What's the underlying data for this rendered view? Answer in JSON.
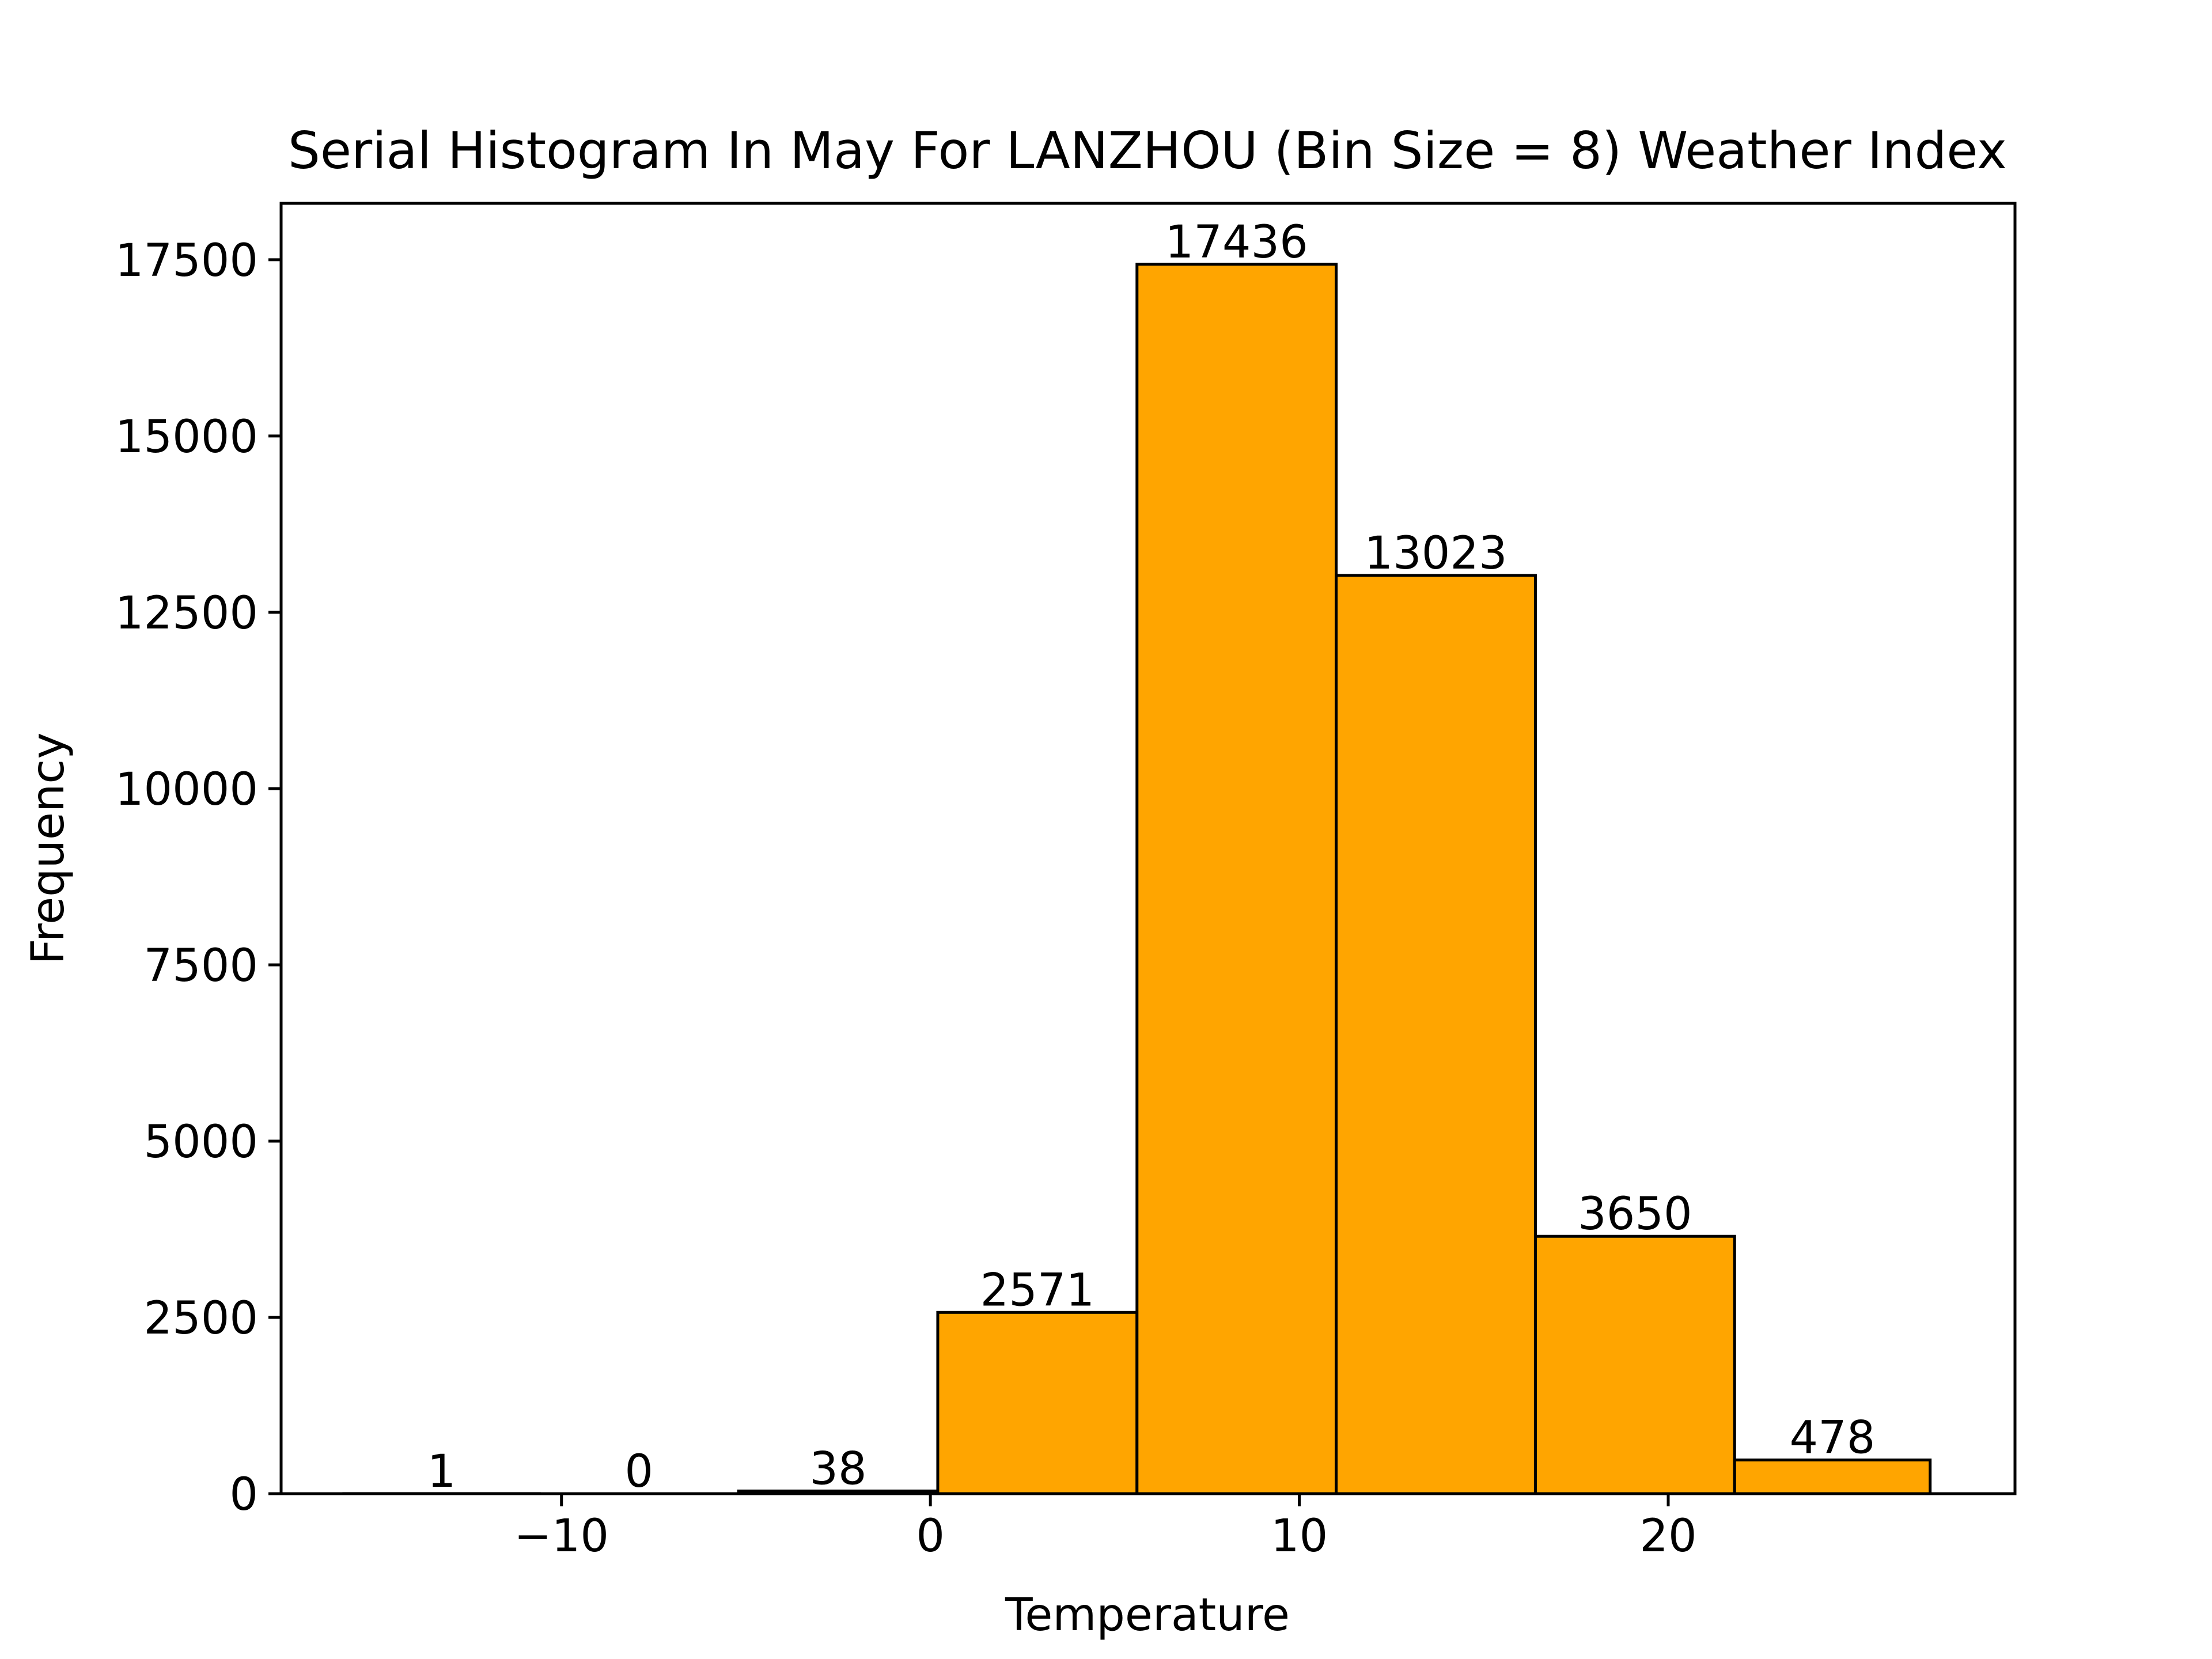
{
  "chart_data": {
    "type": "bar",
    "title": "Serial Histogram In May For LANZHOU (Bin Size = 8) Weather Index",
    "xlabel": "Temperature",
    "ylabel": "Frequency",
    "x_ticks": [
      -10,
      0,
      10,
      20
    ],
    "x_tick_labels": [
      "−10",
      "0",
      "10",
      "20"
    ],
    "y_ticks": [
      0,
      2500,
      5000,
      7500,
      10000,
      12500,
      15000,
      17500
    ],
    "y_tick_labels": [
      "0",
      "2500",
      "5000",
      "7500",
      "10000",
      "12500",
      "15000",
      "17500"
    ],
    "xlim": [
      -17.6,
      29.4
    ],
    "ylim": [
      0,
      18300
    ],
    "bins": [
      {
        "x_start": -15.9,
        "x_end": -10.6,
        "value": 1
      },
      {
        "x_start": -10.6,
        "x_end": -5.2,
        "value": 0
      },
      {
        "x_start": -5.2,
        "x_end": 0.2,
        "value": 38
      },
      {
        "x_start": 0.2,
        "x_end": 5.6,
        "value": 2571
      },
      {
        "x_start": 5.6,
        "x_end": 11.0,
        "value": 17436
      },
      {
        "x_start": 11.0,
        "x_end": 16.4,
        "value": 13023
      },
      {
        "x_start": 16.4,
        "x_end": 21.8,
        "value": 3650
      },
      {
        "x_start": 21.8,
        "x_end": 27.1,
        "value": 478
      }
    ],
    "bar_labels": [
      "1",
      "0",
      "38",
      "2571",
      "17436",
      "13023",
      "3650",
      "478"
    ],
    "colors": {
      "bar_fill": "#FFA500",
      "bar_edge": "#000000",
      "axes": "#000000",
      "background": "#FFFFFF"
    },
    "grid": false,
    "legend": "none"
  }
}
